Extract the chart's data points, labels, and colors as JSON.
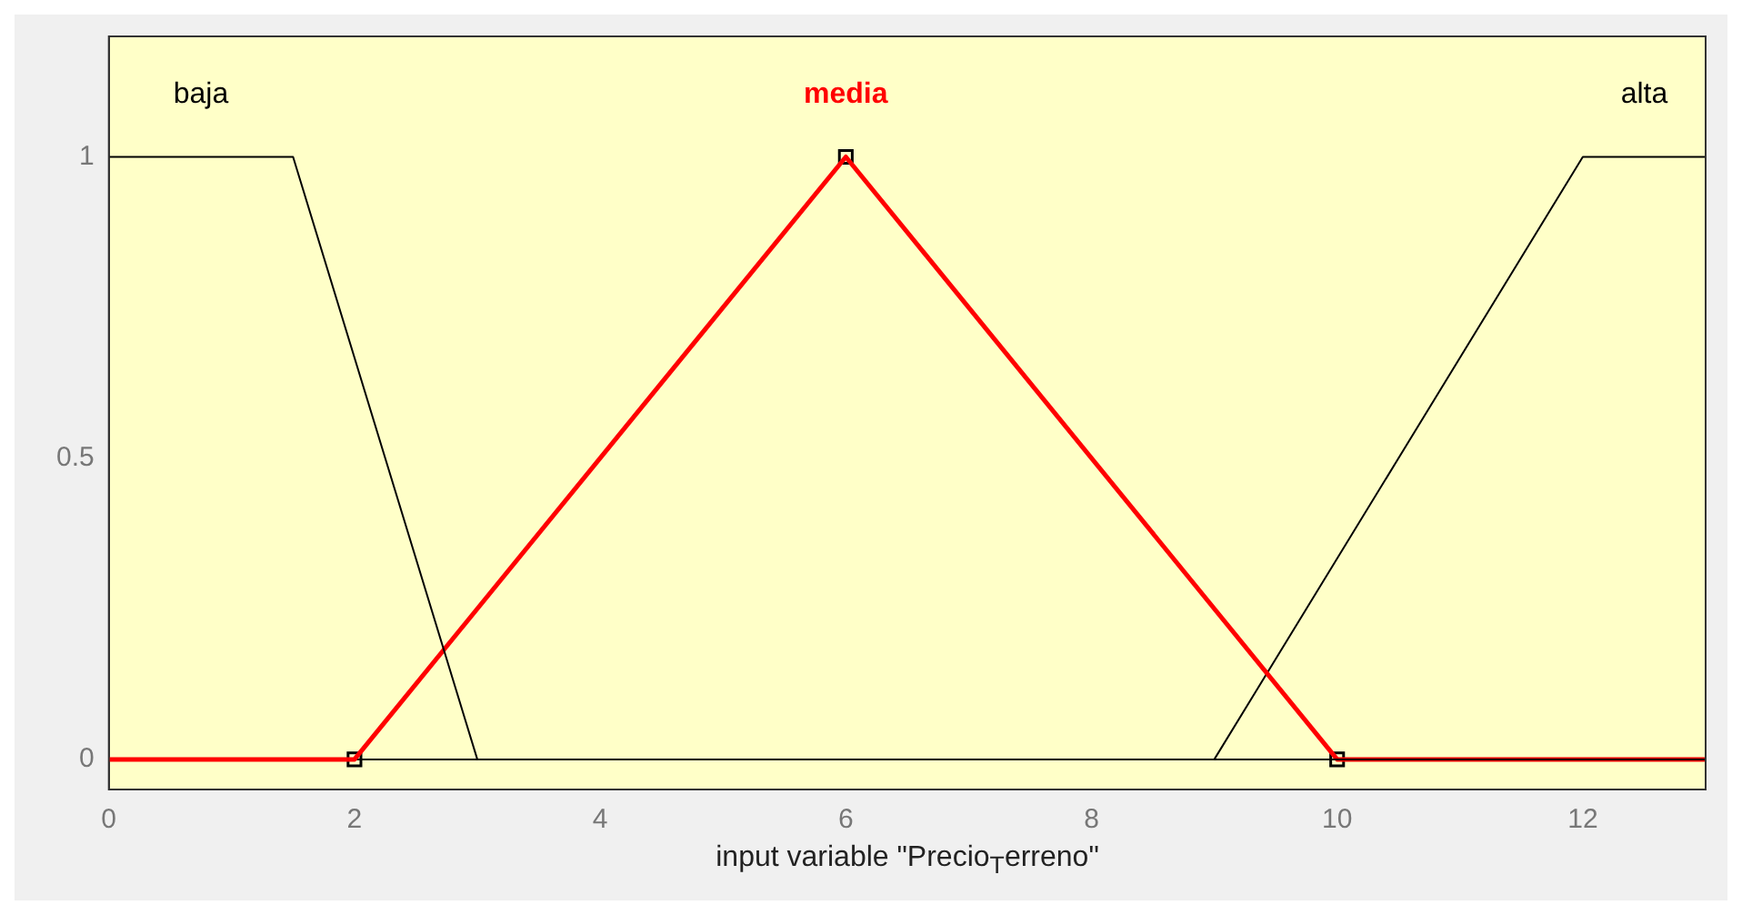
{
  "chart_data": {
    "type": "line",
    "xlabel": "input variable \"Precio$_{T}$erreno\"",
    "xlim": [
      0,
      13
    ],
    "xticks": [
      0,
      2,
      4,
      6,
      8,
      10,
      12
    ],
    "ylim": [
      -0.05,
      1.2
    ],
    "yticks": [
      0,
      0.5,
      1
    ],
    "grid": false,
    "legend": false,
    "marker": "none",
    "line_style": "solid",
    "series": [
      {
        "name": "baja",
        "color": "#000000",
        "x": [
          0,
          1.5,
          3,
          13
        ],
        "values": [
          1,
          1,
          0,
          0
        ]
      },
      {
        "name": "media",
        "color": "#ff0000",
        "x": [
          0,
          2,
          6,
          10,
          13
        ],
        "values": [
          0,
          0,
          1,
          0,
          0
        ]
      },
      {
        "name": "alta",
        "color": "#000000",
        "x": [
          0,
          9,
          12,
          13
        ],
        "values": [
          0,
          0,
          1,
          1
        ]
      },
      {
        "type": "scatter",
        "marker": "square",
        "color": "#000000",
        "x": [
          2,
          6,
          10
        ],
        "values": [
          0,
          1,
          0
        ]
      }
    ]
  }
}
